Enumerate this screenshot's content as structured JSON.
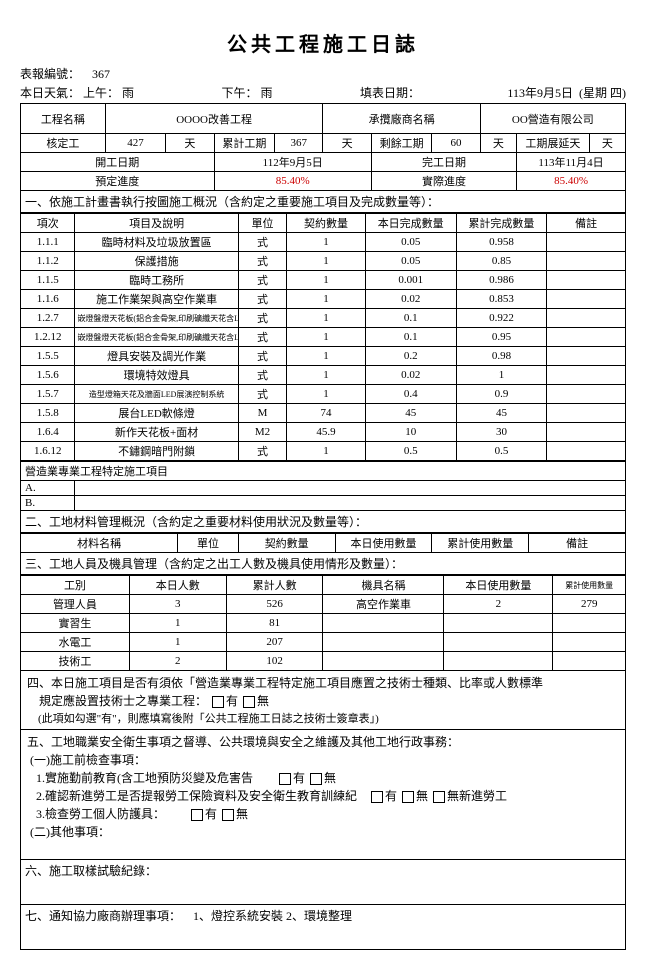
{
  "title": "公共工程施工日誌",
  "meta": {
    "report_no_label": "表報編號：",
    "report_no": "367",
    "weather_label": "本日天氣：",
    "am_label": "上午：",
    "am": "雨",
    "pm_label": "下午：",
    "pm": "雨",
    "fill_date_label": "填表日期：",
    "fill_date": "113年9月5日",
    "weekday": "(星期 四)"
  },
  "hdr": {
    "proj_label": "工程名稱",
    "proj": "OOOO改善工程",
    "contractor_label": "承攬廠商名稱",
    "contractor": "OO營造有限公司",
    "approved_label": "核定工",
    "approved": "427",
    "days": "天",
    "cum_label": "累計工期",
    "cum": "367",
    "remain_label": "剩餘工期",
    "remain": "60",
    "ext_label": "工期展延天",
    "ext": "",
    "start_label": "開工日期",
    "start": "112年9月5日",
    "end_label": "完工日期",
    "end": "113年11月4日",
    "plan_label": "預定進度",
    "plan": "85.40%",
    "actual_label": "實際進度",
    "actual": "85.40%"
  },
  "s1": {
    "title": "一、依施工計畫書執行按圖施工概況（含約定之重要施工項目及完成數量等）：",
    "cols": [
      "項次",
      "項目及說明",
      "單位",
      "契約數量",
      "本日完成數量",
      "累計完成數量",
      "備註"
    ],
    "rows": [
      [
        "1.1.1",
        "臨時材料及垃圾放置區",
        "式",
        "1",
        "0.05",
        "0.958",
        ""
      ],
      [
        "1.1.2",
        "保護措施",
        "式",
        "1",
        "0.05",
        "0.85",
        ""
      ],
      [
        "1.1.5",
        "臨時工務所",
        "式",
        "1",
        "0.001",
        "0.986",
        ""
      ],
      [
        "1.1.6",
        "施工作業架與高空作業車",
        "式",
        "1",
        "0.02",
        "0.853",
        ""
      ],
      [
        "1.2.7",
        "嵌燈盤燈天花板(鋁合金骨架,印刷礦纖天花含LED燈光",
        "式",
        "1",
        "0.1",
        "0.922",
        ""
      ],
      [
        "1.2.12",
        "嵌燈盤燈天花板(鋁合金骨架,印刷礦纖天花含LED燈光",
        "式",
        "1",
        "0.1",
        "0.95",
        ""
      ],
      [
        "1.5.5",
        "燈具安裝及調光作業",
        "式",
        "1",
        "0.2",
        "0.98",
        ""
      ],
      [
        "1.5.6",
        "環境特效燈具",
        "式",
        "1",
        "0.02",
        "1",
        ""
      ],
      [
        "1.5.7",
        "造型燈箱天花及牆面LED展演控制系統",
        "式",
        "1",
        "0.4",
        "0.9",
        ""
      ],
      [
        "1.5.8",
        "展台LED軟條燈",
        "M",
        "74",
        "45",
        "45",
        ""
      ],
      [
        "1.6.4",
        "新作天花板+面材",
        "M2",
        "45.9",
        "10",
        "30",
        ""
      ],
      [
        "1.6.12",
        "不鏽鋼暗門附鎖",
        "式",
        "1",
        "0.5",
        "0.5",
        ""
      ]
    ],
    "sub1": "營造業專業工程特定施工項目",
    "a": "A.",
    "b": "B."
  },
  "s2": {
    "title": "二、工地材料管理概況（含約定之重要材料使用狀況及數量等）：",
    "cols": [
      "材料名稱",
      "單位",
      "契約數量",
      "本日使用數量",
      "累計使用數量",
      "備註"
    ]
  },
  "s3": {
    "title": "三、工地人員及機具管理（含約定之出工人數及機具使用情形及數量）：",
    "cols": [
      "工別",
      "本日人數",
      "累計人數",
      "機具名稱",
      "本日使用數量",
      "累計使用數量"
    ],
    "rows": [
      [
        "管理人員",
        "3",
        "526",
        "高空作業車",
        "2",
        "279"
      ],
      [
        "實習生",
        "1",
        "81",
        "",
        "",
        ""
      ],
      [
        "水電工",
        "1",
        "207",
        "",
        "",
        ""
      ],
      [
        "技術工",
        "2",
        "102",
        "",
        "",
        ""
      ]
    ]
  },
  "s4": {
    "l1": "四、本日施工項目是否有須依「營造業專業工程特定施工項目應置之技術士種類、比率或人數標準",
    "l2": "規定應設置技術士之專業工程：",
    "yes": "有",
    "no": "無",
    "note": "(此項如勾選\"有\"，則應填寫後附「公共工程施工日誌之技術士簽章表」)"
  },
  "s5": {
    "title": "五、工地職業安全衛生事項之督導、公共環境與安全之維護及其他工地行政事務：",
    "a": "(一)施工前檢查事項：",
    "a1": "1.實施勤前教育(含工地預防災變及危害告",
    "a1y": "有",
    "a1n": "無",
    "a2": "2.確認新進勞工是否提報勞工保險資料及安全衛生教育訓練紀",
    "a2y": "有",
    "a2n": "無",
    "a2x": "無新進勞工",
    "a3": "3.檢查勞工個人防護具：",
    "a3y": "有",
    "a3n": "無",
    "b": "(二)其他事項："
  },
  "s6": "六、施工取樣試驗紀錄：",
  "s7": {
    "label": "七、通知協力廠商辦理事項：",
    "text": "1、燈控系統安裝 2、環境整理"
  }
}
